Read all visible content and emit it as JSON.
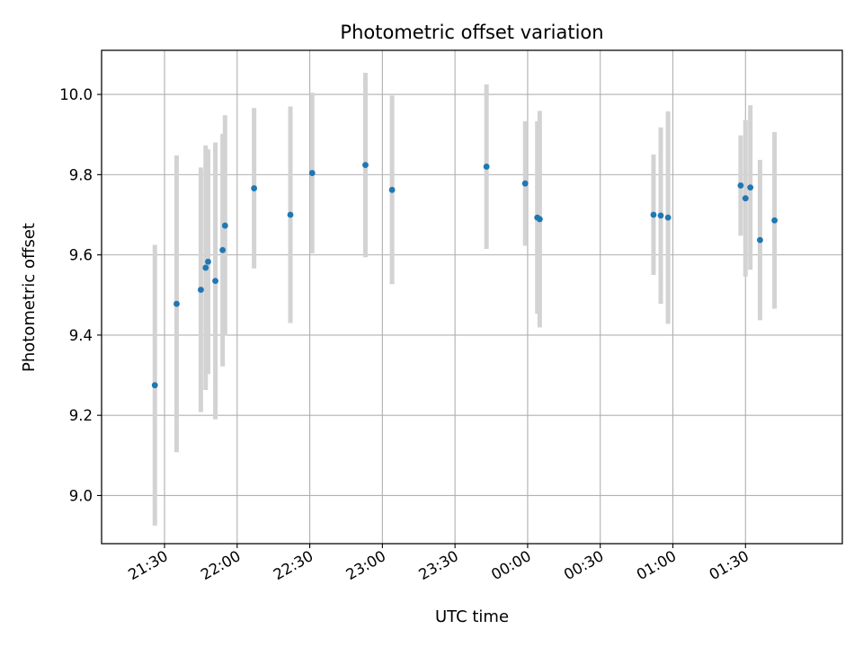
{
  "chart_data": {
    "type": "scatter",
    "title": "Photometric offset variation",
    "xlabel": "UTC time",
    "ylabel": "Photometric offset",
    "grid": true,
    "x_axis_kind": "time",
    "xlim": [
      "21:04",
      "02:10"
    ],
    "ylim": [
      8.88,
      10.11
    ],
    "yticks": [
      9.0,
      9.2,
      9.4,
      9.6,
      9.8,
      10.0
    ],
    "ytick_labels": [
      "9.0",
      "9.2",
      "9.4",
      "9.6",
      "9.8",
      "10.0"
    ],
    "xticks": [
      "21:30",
      "22:00",
      "22:30",
      "23:00",
      "23:30",
      "00:00",
      "00:30",
      "01:00",
      "01:30"
    ],
    "marker_color": "#1f77b4",
    "errorbar_color": "#d3d3d3",
    "points": [
      {
        "x": "21:26",
        "y": 9.275,
        "err": 0.35
      },
      {
        "x": "21:35",
        "y": 9.478,
        "err": 0.37
      },
      {
        "x": "21:45",
        "y": 9.513,
        "err": 0.305
      },
      {
        "x": "21:47",
        "y": 9.568,
        "err": 0.305
      },
      {
        "x": "21:48",
        "y": 9.583,
        "err": 0.28
      },
      {
        "x": "21:51",
        "y": 9.535,
        "err": 0.345
      },
      {
        "x": "21:54",
        "y": 9.612,
        "err": 0.29
      },
      {
        "x": "21:55",
        "y": 9.673,
        "err": 0.275
      },
      {
        "x": "22:07",
        "y": 9.766,
        "err": 0.2
      },
      {
        "x": "22:22",
        "y": 9.7,
        "err": 0.27
      },
      {
        "x": "22:31",
        "y": 9.804,
        "err": 0.2
      },
      {
        "x": "22:53",
        "y": 9.824,
        "err": 0.23
      },
      {
        "x": "23:04",
        "y": 9.762,
        "err": 0.235
      },
      {
        "x": "23:43",
        "y": 9.82,
        "err": 0.205
      },
      {
        "x": "23:59",
        "y": 9.778,
        "err": 0.155
      },
      {
        "x": "00:04",
        "y": 9.693,
        "err": 0.24
      },
      {
        "x": "00:05",
        "y": 9.689,
        "err": 0.27
      },
      {
        "x": "00:52",
        "y": 9.7,
        "err": 0.15
      },
      {
        "x": "00:55",
        "y": 9.698,
        "err": 0.22
      },
      {
        "x": "00:58",
        "y": 9.693,
        "err": 0.265
      },
      {
        "x": "01:28",
        "y": 9.773,
        "err": 0.125
      },
      {
        "x": "01:30",
        "y": 9.741,
        "err": 0.195
      },
      {
        "x": "01:32",
        "y": 9.768,
        "err": 0.205
      },
      {
        "x": "01:36",
        "y": 9.637,
        "err": 0.2
      },
      {
        "x": "01:42",
        "y": 9.686,
        "err": 0.22
      }
    ]
  }
}
